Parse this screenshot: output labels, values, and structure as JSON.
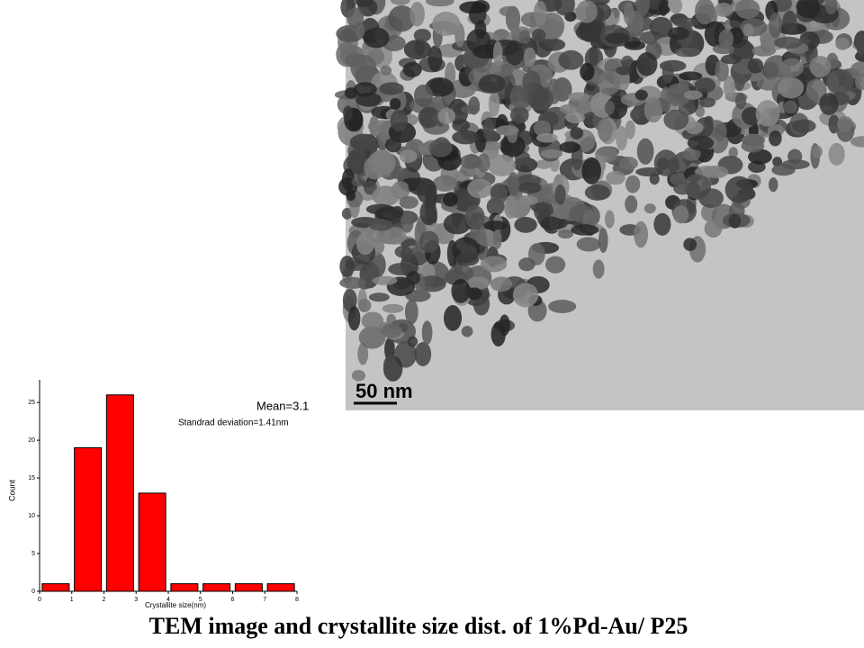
{
  "chart_data": {
    "type": "histogram",
    "bins": [
      0,
      1,
      2,
      3,
      4,
      5,
      6,
      7,
      8
    ],
    "values": [
      1,
      19,
      26,
      13,
      1,
      1,
      1,
      1
    ],
    "color": "#ff0000",
    "xlabel": "Crystallite size(nm)",
    "ylabel": "Count",
    "xlim": [
      0,
      8
    ],
    "xticks": [
      0,
      1,
      2,
      3,
      4,
      5,
      6,
      7,
      8
    ],
    "ylim": [
      0,
      28
    ],
    "yticks": [
      0,
      5,
      10,
      15,
      20,
      25
    ],
    "annotations": [
      "Mean=3.1",
      "Standrad deviation=1.41nm"
    ]
  },
  "tem_image": {
    "scale_bar": "50 nm"
  },
  "caption": "TEM image and crystallite size dist. of 1%Pd-Au/ P25"
}
